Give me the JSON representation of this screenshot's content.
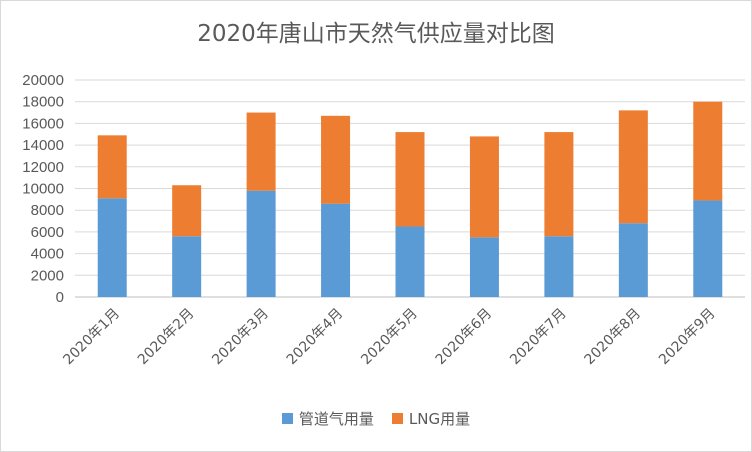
{
  "chart_data": {
    "type": "bar",
    "stacked": true,
    "title": "2020年唐山市天然气供应量对比图",
    "categories": [
      "2020年1月",
      "2020年2月",
      "2020年3月",
      "2020年4月",
      "2020年5月",
      "2020年6月",
      "2020年7月",
      "2020年8月",
      "2020年9月"
    ],
    "series": [
      {
        "name": "管道气用量",
        "color": "#5b9bd5",
        "values": [
          9100,
          5600,
          9800,
          8600,
          6500,
          5500,
          5600,
          6800,
          8900
        ]
      },
      {
        "name": "LNG用量",
        "color": "#ed7d31",
        "values": [
          5800,
          4700,
          7200,
          8100,
          8700,
          9300,
          9600,
          10400,
          9100
        ]
      }
    ],
    "ylim": [
      0,
      20000
    ],
    "yticks": [
      0,
      2000,
      4000,
      6000,
      8000,
      10000,
      12000,
      14000,
      16000,
      18000,
      20000
    ],
    "grid": true,
    "legend": "bottom"
  }
}
